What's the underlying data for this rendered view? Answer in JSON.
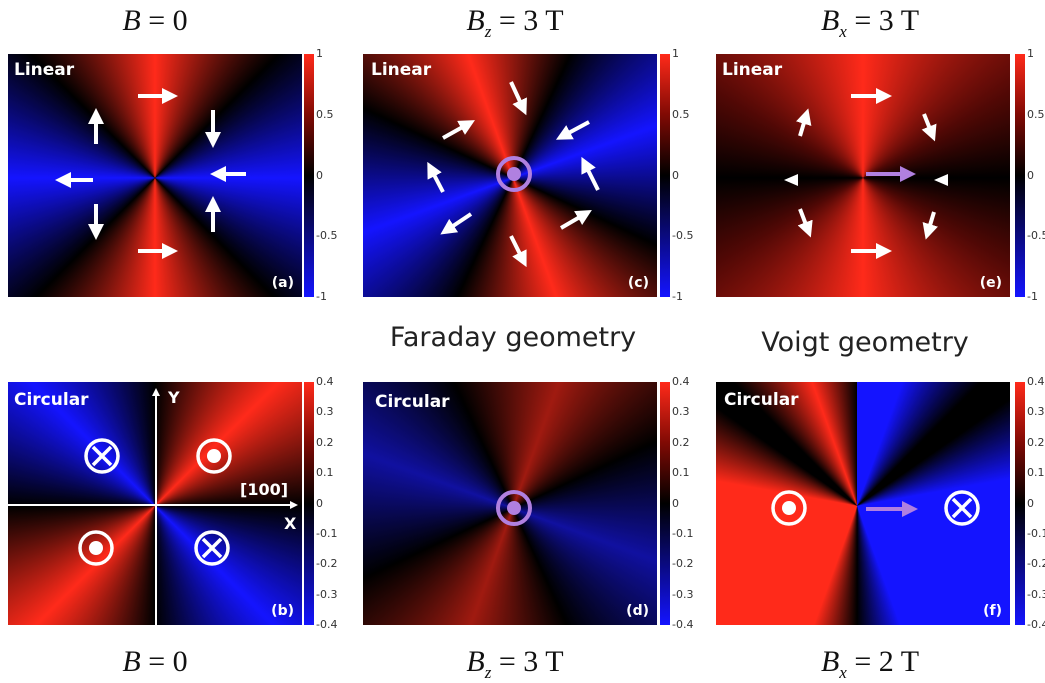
{
  "titles": {
    "top_left": {
      "sym": "B",
      "rest": " = 0"
    },
    "top_mid": {
      "sym": "B",
      "sub": "z",
      "rest": " = 3  T"
    },
    "top_right": {
      "sym": "B",
      "sub": "x",
      "rest": " = 3  T"
    },
    "bot_left": {
      "sym": "B",
      "rest": " = 0"
    },
    "bot_mid": {
      "sym": "B",
      "sub": "z",
      "rest": " = 3  T"
    },
    "bot_right": {
      "sym": "B",
      "sub": "x",
      "rest": " = 2  T"
    }
  },
  "geometry": {
    "faraday": "Faraday geometry",
    "voigt": "Voigt geometry"
  },
  "panels": {
    "a": {
      "kind": "Linear",
      "tag": "(a)"
    },
    "b": {
      "kind": "Circular",
      "tag": "(b)",
      "axis_y": "Y",
      "axis_x": "X",
      "direction": "[100]"
    },
    "c": {
      "kind": "Linear",
      "tag": "(c)"
    },
    "d": {
      "kind": "Circular",
      "tag": "(d)"
    },
    "e": {
      "kind": "Linear",
      "tag": "(e)"
    },
    "f": {
      "kind": "Circular",
      "tag": "(f)"
    }
  },
  "colorbars": {
    "linear": {
      "ticks": [
        "1",
        "0.5",
        "0",
        "-0.5",
        "-1"
      ]
    },
    "circular": {
      "ticks": [
        "0.4",
        "0.3",
        "0.2",
        "0.1",
        "0",
        "-0.1",
        "-0.2",
        "-0.3",
        "-0.4"
      ]
    }
  },
  "colors": {
    "positive": "#ff2a1a",
    "negative": "#1414ff",
    "zero": "#000000",
    "field_marker": "#b080e0"
  }
}
